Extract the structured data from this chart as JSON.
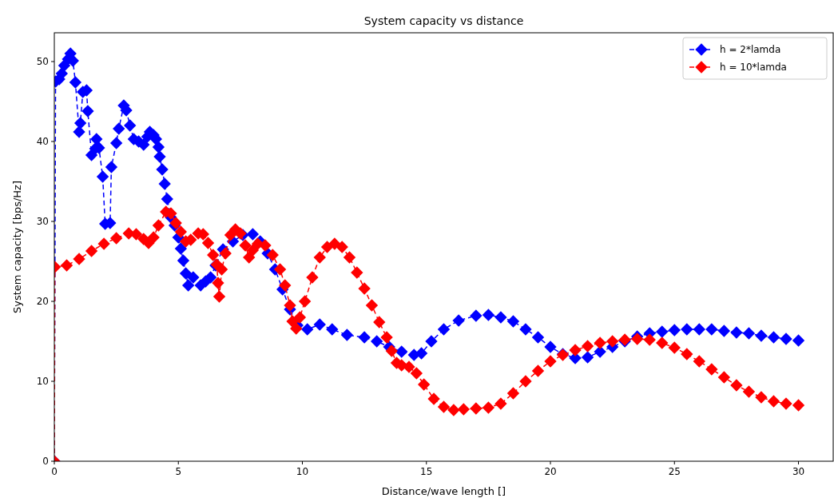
{
  "chart_data": {
    "type": "line",
    "title": "System capacity vs distance",
    "xlabel": "Distance/wave length []",
    "ylabel": "System capacity [bps/Hz]",
    "xlim": [
      0,
      31.4
    ],
    "ylim": [
      0,
      53.6
    ],
    "xticks": [
      0,
      5,
      10,
      15,
      20,
      25,
      30
    ],
    "yticks": [
      0,
      10,
      20,
      30,
      40,
      50
    ],
    "legend": "top right",
    "marker": "diamond",
    "line_style": "dashed",
    "grid": false,
    "series": [
      {
        "name": "h = 2*lamda",
        "color": "#0000ff",
        "x": [
          0,
          0.05,
          0.2,
          0.3,
          0.4,
          0.55,
          0.65,
          0.75,
          0.85,
          1.0,
          1.05,
          1.15,
          1.3,
          1.35,
          1.5,
          1.65,
          1.7,
          1.8,
          1.95,
          2.05,
          2.25,
          2.3,
          2.5,
          2.6,
          2.8,
          2.9,
          3.05,
          3.2,
          3.4,
          3.6,
          3.75,
          3.85,
          4.0,
          4.1,
          4.2,
          4.25,
          4.35,
          4.45,
          4.55,
          4.7,
          4.85,
          5.0,
          5.1,
          5.2,
          5.3,
          5.4,
          5.6,
          5.9,
          6.1,
          6.3,
          6.5,
          6.8,
          7.2,
          7.6,
          8.0,
          8.3,
          8.6,
          8.9,
          9.2,
          9.5,
          9.8,
          10.2,
          10.7,
          11.2,
          11.8,
          12.5,
          13,
          13.5,
          14,
          14.5,
          14.8,
          15.2,
          15.7,
          16.3,
          17,
          17.5,
          18,
          18.5,
          19,
          19.5,
          20,
          20.5,
          21,
          21.5,
          22,
          22.5,
          23,
          23.5,
          24,
          24.5,
          25,
          25.5,
          26,
          26.5,
          27,
          27.5,
          28,
          28.5,
          29,
          29.5,
          30
        ],
        "values": [
          0,
          47.5,
          47.8,
          48.5,
          49.5,
          50.3,
          51,
          50.1,
          47.4,
          41.2,
          42.3,
          46.2,
          46.4,
          43.8,
          38.3,
          39.1,
          40.3,
          39.2,
          35.6,
          29.7,
          29.8,
          36.8,
          39.8,
          41.6,
          44.5,
          43.9,
          42,
          40.3,
          40,
          39.6,
          40.6,
          41.2,
          40.8,
          40.3,
          39.3,
          38.1,
          36.5,
          34.7,
          32.8,
          30.5,
          29.5,
          28,
          26.6,
          25.1,
          23.5,
          22,
          23,
          22,
          22.5,
          23,
          24.5,
          26.5,
          27.5,
          28.3,
          28.4,
          27.5,
          26,
          24,
          21.5,
          19,
          17,
          16.5,
          17.1,
          16.5,
          15.8,
          15.5,
          15,
          14.3,
          13.7,
          13.3,
          13.5,
          15,
          16.5,
          17.6,
          18.2,
          18.3,
          18,
          17.5,
          16.5,
          15.5,
          14.3,
          13.4,
          12.9,
          13,
          13.7,
          14.3,
          15,
          15.6,
          16,
          16.2,
          16.4,
          16.5,
          16.5,
          16.5,
          16.3,
          16.1,
          16,
          15.7,
          15.5,
          15.3,
          15.1
        ]
      },
      {
        "name": "h = 10*lamda",
        "color": "#ff0000",
        "x": [
          0,
          0.02,
          0.5,
          1.0,
          1.5,
          2,
          2.5,
          3,
          3.3,
          3.6,
          3.8,
          4.0,
          4.2,
          4.5,
          4.7,
          4.9,
          5.1,
          5.3,
          5.5,
          5.8,
          6.0,
          6.2,
          6.4,
          6.55,
          6.6,
          6.65,
          6.75,
          6.9,
          7.1,
          7.3,
          7.5,
          7.7,
          7.85,
          8.0,
          8.2,
          8.5,
          8.8,
          9.1,
          9.3,
          9.5,
          9.6,
          9.75,
          9.9,
          10.1,
          10.4,
          10.7,
          11.0,
          11.3,
          11.6,
          11.9,
          12.2,
          12.5,
          12.8,
          13.1,
          13.4,
          13.6,
          13.8,
          14.0,
          14.3,
          14.6,
          14.9,
          15.3,
          15.7,
          16.1,
          16.5,
          17,
          17.5,
          18,
          18.5,
          19,
          19.5,
          20,
          20.5,
          21,
          21.5,
          22,
          22.5,
          23,
          23.5,
          24,
          24.5,
          25,
          25.5,
          26,
          26.5,
          27,
          27.5,
          28,
          28.5,
          29,
          29.5,
          30
        ],
        "values": [
          0,
          24.3,
          24.5,
          25.3,
          26.3,
          27.2,
          27.9,
          28.5,
          28.4,
          27.8,
          27.3,
          28,
          29.5,
          31.2,
          31,
          29.8,
          28.7,
          27.5,
          27.7,
          28.5,
          28.4,
          27.3,
          25.8,
          24.6,
          22.3,
          20.6,
          24,
          26,
          28.3,
          29,
          28.5,
          27,
          25.5,
          26.4,
          27.2,
          27,
          25.8,
          24,
          22,
          19.5,
          17.5,
          16.6,
          18,
          20,
          23,
          25.5,
          26.8,
          27.2,
          26.8,
          25.5,
          23.6,
          21.6,
          19.5,
          17.4,
          15.5,
          13.8,
          12.3,
          12,
          11.8,
          11,
          9.6,
          7.8,
          6.8,
          6.4,
          6.5,
          6.6,
          6.7,
          7.2,
          8.5,
          10,
          11.3,
          12.5,
          13.3,
          13.9,
          14.4,
          14.8,
          15,
          15.2,
          15.3,
          15.2,
          14.8,
          14.2,
          13.4,
          12.5,
          11.5,
          10.5,
          9.5,
          8.7,
          8,
          7.5,
          7.2,
          7
        ]
      }
    ]
  }
}
